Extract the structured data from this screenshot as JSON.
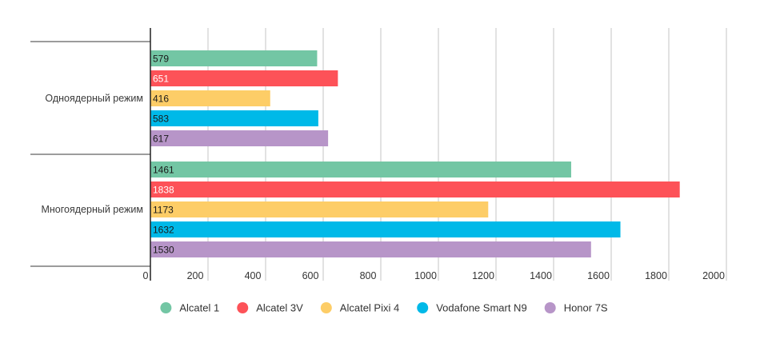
{
  "chart_data": {
    "type": "bar",
    "orientation": "horizontal",
    "categories": [
      "Одноядерный режим",
      "Многоядерный режим"
    ],
    "series": [
      {
        "name": "Alcatel 1",
        "color": "#73c6a4",
        "values": [
          579,
          1461
        ],
        "label_color": "#1a1a1a"
      },
      {
        "name": "Alcatel 3V",
        "color": "#fd5258",
        "values": [
          651,
          1838
        ],
        "label_color": "#ffffff"
      },
      {
        "name": "Alcatel Pixi 4",
        "color": "#fdcd67",
        "values": [
          416,
          1173
        ],
        "label_color": "#1a1a1a"
      },
      {
        "name": "Vodafone Smart N9",
        "color": "#00b9e8",
        "values": [
          583,
          1632
        ],
        "label_color": "#1a1a1a"
      },
      {
        "name": "Honor 7S",
        "color": "#b795c8",
        "values": [
          617,
          1530
        ],
        "label_color": "#1a1a1a"
      }
    ],
    "xlim": [
      0,
      2000
    ],
    "ticks": [
      "0",
      "200",
      "400",
      "600",
      "800",
      "1000",
      "1200",
      "1400",
      "1600",
      "1800",
      "2000"
    ],
    "grid": true,
    "legend_position": "bottom",
    "title": "",
    "xlabel": "",
    "ylabel": ""
  }
}
